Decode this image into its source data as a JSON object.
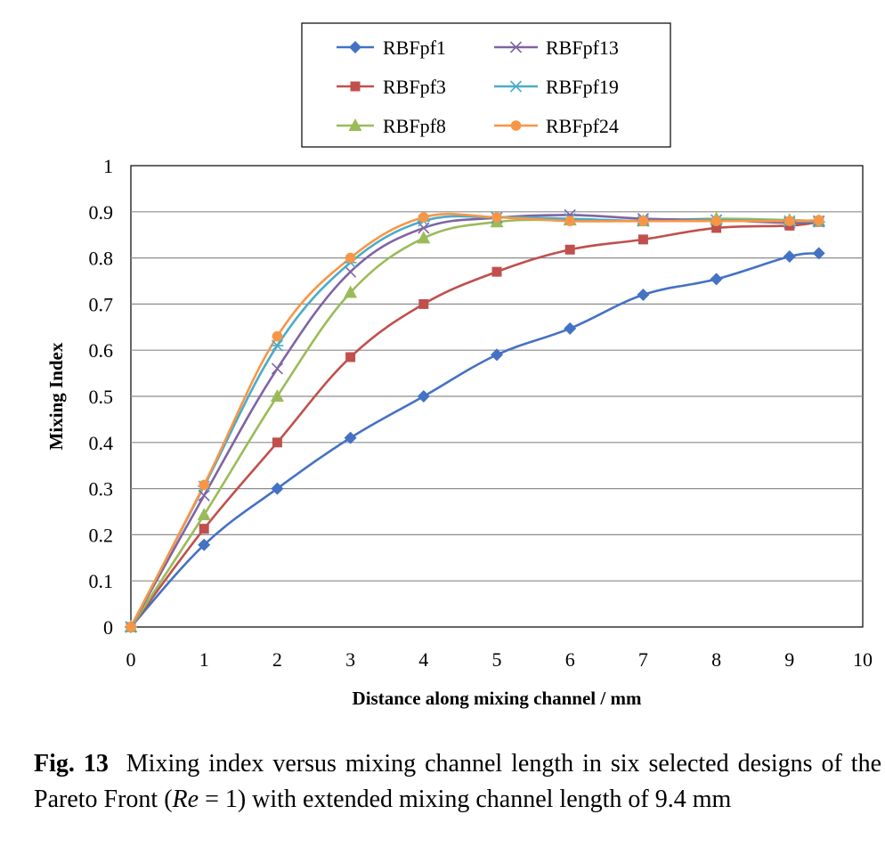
{
  "chart_data": {
    "type": "line",
    "title": "",
    "xlabel": "Distance along mixing channel / mm",
    "ylabel": "Mixing Index",
    "xlim": [
      0,
      10
    ],
    "ylim": [
      0,
      1
    ],
    "x_ticks": [
      "0",
      "1",
      "2",
      "3",
      "4",
      "5",
      "6",
      "7",
      "8",
      "9",
      "10"
    ],
    "y_ticks": [
      "0",
      "0.1",
      "0.2",
      "0.3",
      "0.4",
      "0.5",
      "0.6",
      "0.7",
      "0.8",
      "0.9",
      "1"
    ],
    "grid": true,
    "legend_position": "top",
    "series": [
      {
        "name": "RBFpf1",
        "color": "#4472C4",
        "marker": "diamond",
        "x": [
          0,
          1,
          2,
          3,
          4,
          5,
          6,
          7,
          8,
          9,
          9.4
        ],
        "y": [
          0,
          0.178,
          0.3,
          0.41,
          0.5,
          0.59,
          0.647,
          0.72,
          0.754,
          0.803,
          0.81
        ]
      },
      {
        "name": "RBFpf3",
        "color": "#C0504D",
        "marker": "square",
        "x": [
          0,
          1,
          2,
          3,
          4,
          5,
          6,
          7,
          8,
          9,
          9.4
        ],
        "y": [
          0,
          0.213,
          0.4,
          0.585,
          0.7,
          0.77,
          0.818,
          0.84,
          0.865,
          0.87,
          0.878
        ]
      },
      {
        "name": "RBFpf8",
        "color": "#9BBB59",
        "marker": "triangle",
        "x": [
          0,
          1,
          2,
          3,
          4,
          5,
          6,
          7,
          8,
          9,
          9.4
        ],
        "y": [
          0,
          0.243,
          0.5,
          0.725,
          0.843,
          0.878,
          0.882,
          0.88,
          0.885,
          0.882,
          0.88
        ]
      },
      {
        "name": "RBFpf13",
        "color": "#8064A2",
        "marker": "x",
        "x": [
          0,
          1,
          2,
          3,
          4,
          5,
          6,
          7,
          8,
          9,
          9.4
        ],
        "y": [
          0,
          0.285,
          0.56,
          0.77,
          0.865,
          0.887,
          0.893,
          0.885,
          0.882,
          0.876,
          0.88
        ]
      },
      {
        "name": "RBFpf19",
        "color": "#4BACC6",
        "marker": "star",
        "x": [
          0,
          1,
          2,
          3,
          4,
          5,
          6,
          7,
          8,
          9,
          9.4
        ],
        "y": [
          0,
          0.305,
          0.61,
          0.79,
          0.88,
          0.888,
          0.885,
          0.88,
          0.882,
          0.88,
          0.878
        ]
      },
      {
        "name": "RBFpf24",
        "color": "#F79646",
        "marker": "circle",
        "x": [
          0,
          1,
          2,
          3,
          4,
          5,
          6,
          7,
          8,
          9,
          9.4
        ],
        "y": [
          0,
          0.308,
          0.63,
          0.8,
          0.888,
          0.888,
          0.88,
          0.88,
          0.88,
          0.88,
          0.882
        ]
      }
    ]
  },
  "caption": {
    "label": "Fig. 13",
    "text_1": "Mixing index versus mixing channel length in six selected designs of the Pareto Front (",
    "re_symbol": "Re",
    "text_2": " = 1) with extended mixing channel length of 9.4 mm"
  }
}
